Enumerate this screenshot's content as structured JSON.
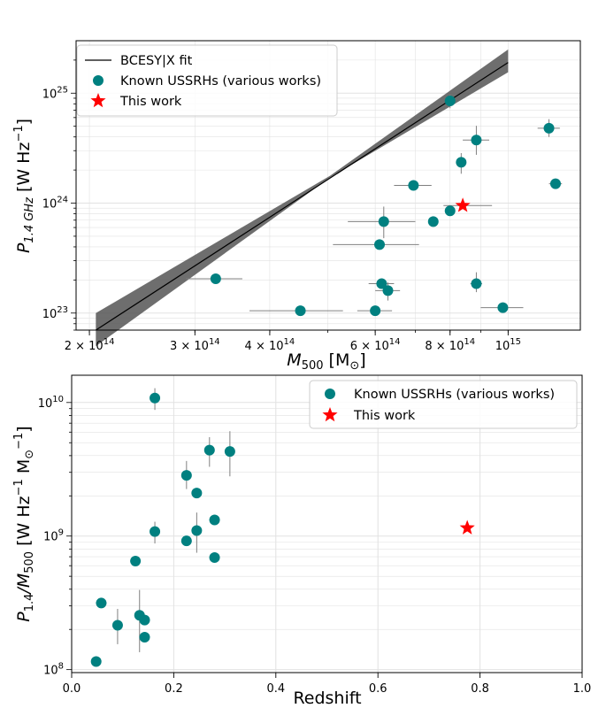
{
  "colors": {
    "teal": "#008080",
    "red": "#ff0000",
    "fit_line": "#000000",
    "fit_band": "#555555",
    "errbar": "#808080",
    "grid": "#e2e2e2"
  },
  "chart_data": [
    {
      "id": "top",
      "type": "scatter",
      "x_scale": "log",
      "y_scale": "log",
      "xlim": [
        190000000000000.0,
        1320000000000000.0
      ],
      "ylim": [
        7e+22,
        3e+25
      ],
      "xlabel_main": "M",
      "xlabel_sub": "500",
      "xlabel_unit": " [M",
      "xlabel_sun": "⊙",
      "xlabel_close": "]",
      "ylabel_main": "P",
      "ylabel_sub": "1.4 GHz",
      "ylabel_unit": " [W Hz",
      "ylabel_sup": "−1",
      "ylabel_close": "]",
      "x_ticks": [
        {
          "value": 200000000000000.0,
          "base": "2 × 10",
          "exp": "14"
        },
        {
          "value": 300000000000000.0,
          "base": "3 × 10",
          "exp": "14"
        },
        {
          "value": 400000000000000.0,
          "base": "4 × 10",
          "exp": "14"
        },
        {
          "value": 600000000000000.0,
          "base": "6 × 10",
          "exp": "14"
        },
        {
          "value": 800000000000000.0,
          "base": "8 × 10",
          "exp": "14"
        },
        {
          "value": 1000000000000000.0,
          "base": "10",
          "exp": "15"
        }
      ],
      "y_ticks": [
        {
          "value": 1e+23,
          "base": "10",
          "exp": "23"
        },
        {
          "value": 1e+24,
          "base": "10",
          "exp": "24"
        },
        {
          "value": 1e+25,
          "base": "10",
          "exp": "25"
        }
      ],
      "fit": {
        "name": "BCESY|X fit",
        "x": [
          205000000000000.0,
          1000000000000000.0
        ],
        "y": [
          7e+22,
          1.9e+25
        ],
        "band_lower_end": [
          5e+22,
          1.55e+25
        ],
        "band_upper_end": [
          1e+23,
          2.5e+25
        ]
      },
      "series": [
        {
          "name": "Known USSRHs (various works)",
          "marker": "circle",
          "points": [
            {
              "x": 325000000000000.0,
              "y": 2.05e+23,
              "xerr": [
                35000000000000.0,
                35000000000000.0
              ],
              "yerr": [
                0,
                0
              ]
            },
            {
              "x": 450000000000000.0,
              "y": 1.05e+23,
              "xerr": [
                80000000000000.0,
                80000000000000.0
              ],
              "yerr": [
                0,
                0
              ]
            },
            {
              "x": 610000000000000.0,
              "y": 4.2e+23,
              "xerr": [
                100000000000000.0,
                100000000000000.0
              ],
              "yerr": [
                0,
                0
              ]
            },
            {
              "x": 620000000000000.0,
              "y": 6.8e+23,
              "xerr": [
                80000000000000.0,
                80000000000000.0
              ],
              "yerr": [
                2e+23,
                2.5e+23
              ]
            },
            {
              "x": 615000000000000.0,
              "y": 1.85e+23,
              "xerr": [
                30000000000000.0,
                30000000000000.0
              ],
              "yerr": [
                0,
                0
              ]
            },
            {
              "x": 630000000000000.0,
              "y": 1.6e+23,
              "xerr": [
                30000000000000.0,
                30000000000000.0
              ],
              "yerr": [
                3e+22,
                3e+22
              ]
            },
            {
              "x": 600000000000000.0,
              "y": 1.05e+23,
              "xerr": [
                40000000000000.0,
                40000000000000.0
              ],
              "yerr": [
                0,
                0
              ]
            },
            {
              "x": 695000000000000.0,
              "y": 1.45e+24,
              "xerr": [
                50000000000000.0,
                50000000000000.0
              ],
              "yerr": [
                0,
                0
              ]
            },
            {
              "x": 750000000000000.0,
              "y": 6.8e+23,
              "xerr": [
                0,
                0
              ],
              "yerr": [
                0,
                0
              ]
            },
            {
              "x": 800000000000000.0,
              "y": 8.5e+23,
              "xerr": [
                0,
                0
              ],
              "yerr": [
                0,
                0
              ]
            },
            {
              "x": 800000000000000.0,
              "y": 8.5e+24,
              "xerr": [
                0,
                0
              ],
              "yerr": [
                1.2e+24,
                1.2e+24
              ]
            },
            {
              "x": 835000000000000.0,
              "y": 2.35e+24,
              "xerr": [
                0,
                0
              ],
              "yerr": [
                5e+23,
                5e+23
              ]
            },
            {
              "x": 885000000000000.0,
              "y": 3.75e+24,
              "xerr": [
                45000000000000.0,
                45000000000000.0
              ],
              "yerr": [
                1e+24,
                1.3e+24
              ]
            },
            {
              "x": 885000000000000.0,
              "y": 1.85e+23,
              "xerr": [
                20000000000000.0,
                20000000000000.0
              ],
              "yerr": [
                3e+22,
                5e+22
              ]
            },
            {
              "x": 980000000000000.0,
              "y": 1.12e+23,
              "xerr": [
                80000000000000.0,
                80000000000000.0
              ],
              "yerr": [
                0,
                0
              ]
            },
            {
              "x": 1170000000000000.0,
              "y": 4.8e+24,
              "xerr": [
                50000000000000.0,
                50000000000000.0
              ],
              "yerr": [
                8e+23,
                1e+24
              ]
            },
            {
              "x": 1200000000000000.0,
              "y": 1.5e+24,
              "xerr": [
                30000000000000.0,
                30000000000000.0
              ],
              "yerr": [
                0,
                0
              ]
            }
          ]
        },
        {
          "name": "This work",
          "marker": "star",
          "points": [
            {
              "x": 840000000000000.0,
              "y": 9.5e+23,
              "xerr": [
                60000000000000.0,
                100000000000000.0
              ],
              "yerr": [
                0,
                0
              ]
            }
          ]
        }
      ],
      "legend_position": "upper-left"
    },
    {
      "id": "bottom",
      "type": "scatter",
      "x_scale": "linear",
      "y_scale": "log",
      "xlim": [
        0.0,
        1.0
      ],
      "ylim": [
        95000000.0,
        16000000000.0
      ],
      "xlabel": "Redshift",
      "ylabel_main": "P",
      "ylabel_sub": "1.4",
      "ylabel_mid": "/M",
      "ylabel_sub2": "500",
      "ylabel_unit": " [W Hz",
      "ylabel_sup": "−1",
      "ylabel_unit2": " M",
      "ylabel_sub3": "⊙",
      "ylabel_sup2": "−1",
      "ylabel_close": "]",
      "x_ticks": [
        {
          "value": 0.0,
          "label": "0.0"
        },
        {
          "value": 0.2,
          "label": "0.2"
        },
        {
          "value": 0.4,
          "label": "0.4"
        },
        {
          "value": 0.6,
          "label": "0.6"
        },
        {
          "value": 0.8,
          "label": "0.8"
        },
        {
          "value": 1.0,
          "label": "1.0"
        }
      ],
      "y_ticks": [
        {
          "value": 100000000.0,
          "base": "10",
          "exp": "8"
        },
        {
          "value": 1000000000.0,
          "base": "10",
          "exp": "9"
        },
        {
          "value": 10000000000.0,
          "base": "10",
          "exp": "10"
        }
      ],
      "series": [
        {
          "name": "Known USSRHs (various works)",
          "marker": "circle",
          "points": [
            {
              "x": 0.048,
              "y": 115000000.0,
              "yerr": [
                0,
                0
              ]
            },
            {
              "x": 0.058,
              "y": 315000000.0,
              "yerr": [
                0,
                0
              ]
            },
            {
              "x": 0.09,
              "y": 215000000.0,
              "yerr": [
                60000000.0,
                70000000.0
              ]
            },
            {
              "x": 0.125,
              "y": 650000000.0,
              "yerr": [
                0,
                0
              ]
            },
            {
              "x": 0.133,
              "y": 255000000.0,
              "yerr": [
                120000000.0,
                140000000.0
              ]
            },
            {
              "x": 0.143,
              "y": 235000000.0,
              "yerr": [
                0,
                0
              ]
            },
            {
              "x": 0.143,
              "y": 175000000.0,
              "yerr": [
                0,
                0
              ]
            },
            {
              "x": 0.163,
              "y": 10800000000.0,
              "yerr": [
                2000000000.0,
                2000000000.0
              ]
            },
            {
              "x": 0.163,
              "y": 1080000000.0,
              "yerr": [
                200000000.0,
                200000000.0
              ]
            },
            {
              "x": 0.225,
              "y": 2850000000.0,
              "yerr": [
                600000000.0,
                800000000.0
              ]
            },
            {
              "x": 0.225,
              "y": 920000000.0,
              "yerr": [
                0,
                0
              ]
            },
            {
              "x": 0.245,
              "y": 2100000000.0,
              "yerr": [
                0,
                0
              ]
            },
            {
              "x": 0.245,
              "y": 1100000000.0,
              "yerr": [
                350000000.0,
                400000000.0
              ]
            },
            {
              "x": 0.27,
              "y": 4400000000.0,
              "yerr": [
                1100000000.0,
                1100000000.0
              ]
            },
            {
              "x": 0.28,
              "y": 1320000000.0,
              "yerr": [
                0,
                0
              ]
            },
            {
              "x": 0.28,
              "y": 690000000.0,
              "yerr": [
                0,
                0
              ]
            },
            {
              "x": 0.31,
              "y": 4300000000.0,
              "yerr": [
                1500000000.0,
                1800000000.0
              ]
            }
          ]
        },
        {
          "name": "This work",
          "marker": "star",
          "points": [
            {
              "x": 0.775,
              "y": 1150000000.0,
              "yerr": [
                0,
                0
              ]
            }
          ]
        }
      ],
      "legend_position": "upper-right"
    }
  ]
}
